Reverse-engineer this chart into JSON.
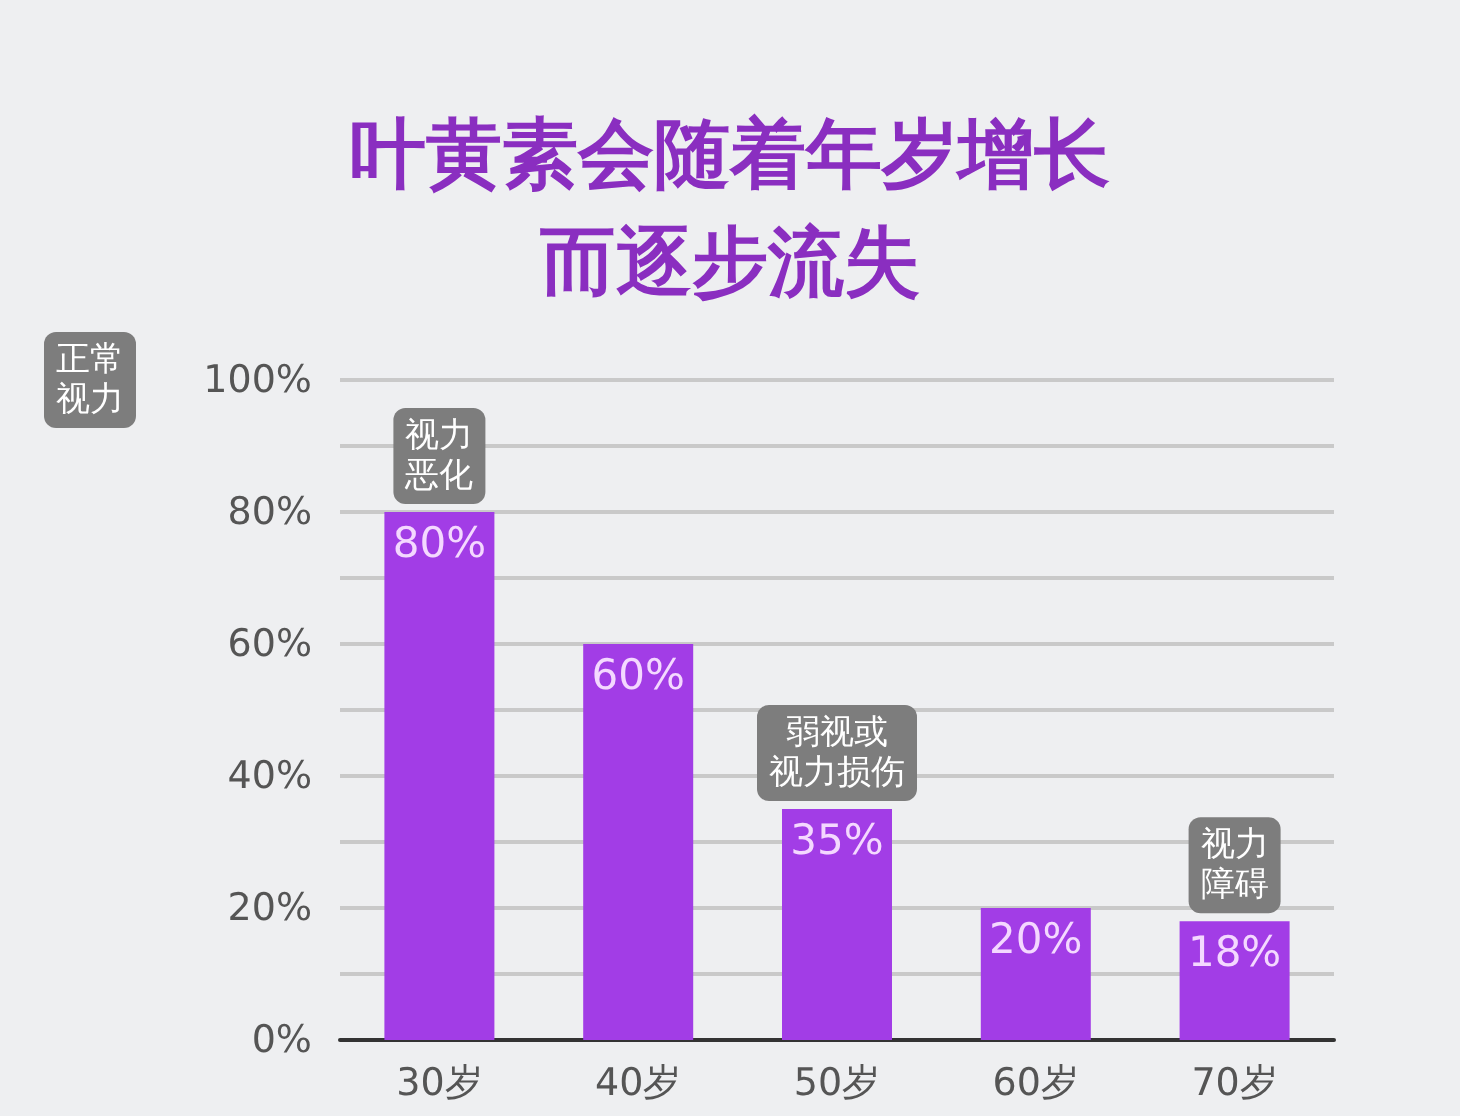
{
  "chart_data": {
    "type": "bar",
    "title": "叶黄素会随着年岁增长而逐步流失",
    "categories": [
      "30岁",
      "40岁",
      "50岁",
      "60岁",
      "70岁"
    ],
    "values": [
      80,
      60,
      35,
      20,
      18
    ],
    "value_labels": [
      "80%",
      "60%",
      "35%",
      "20%",
      "18%"
    ],
    "color": "#a23de6",
    "ylim": [
      0,
      100
    ],
    "yticks": [
      {
        "value": 0,
        "label": "0%"
      },
      {
        "value": 10,
        "label": null
      },
      {
        "value": 20,
        "label": "20%"
      },
      {
        "value": 30,
        "label": null
      },
      {
        "value": 40,
        "label": "40%"
      },
      {
        "value": 50,
        "label": null
      },
      {
        "value": 60,
        "label": "60%"
      },
      {
        "value": 70,
        "label": null
      },
      {
        "value": 80,
        "label": "80%"
      },
      {
        "value": 90,
        "label": null
      },
      {
        "value": 100,
        "label": "100%"
      }
    ],
    "grid": "y",
    "annotations": [
      "正常视力",
      {
        "text": "视力恶化",
        "x": "30岁",
        "y": 80
      },
      {
        "text": "弱视或视力损伤",
        "x": "50岁",
        "y": 35
      },
      {
        "text": "视力障碍",
        "x": "70岁",
        "y": 18
      }
    ]
  }
}
